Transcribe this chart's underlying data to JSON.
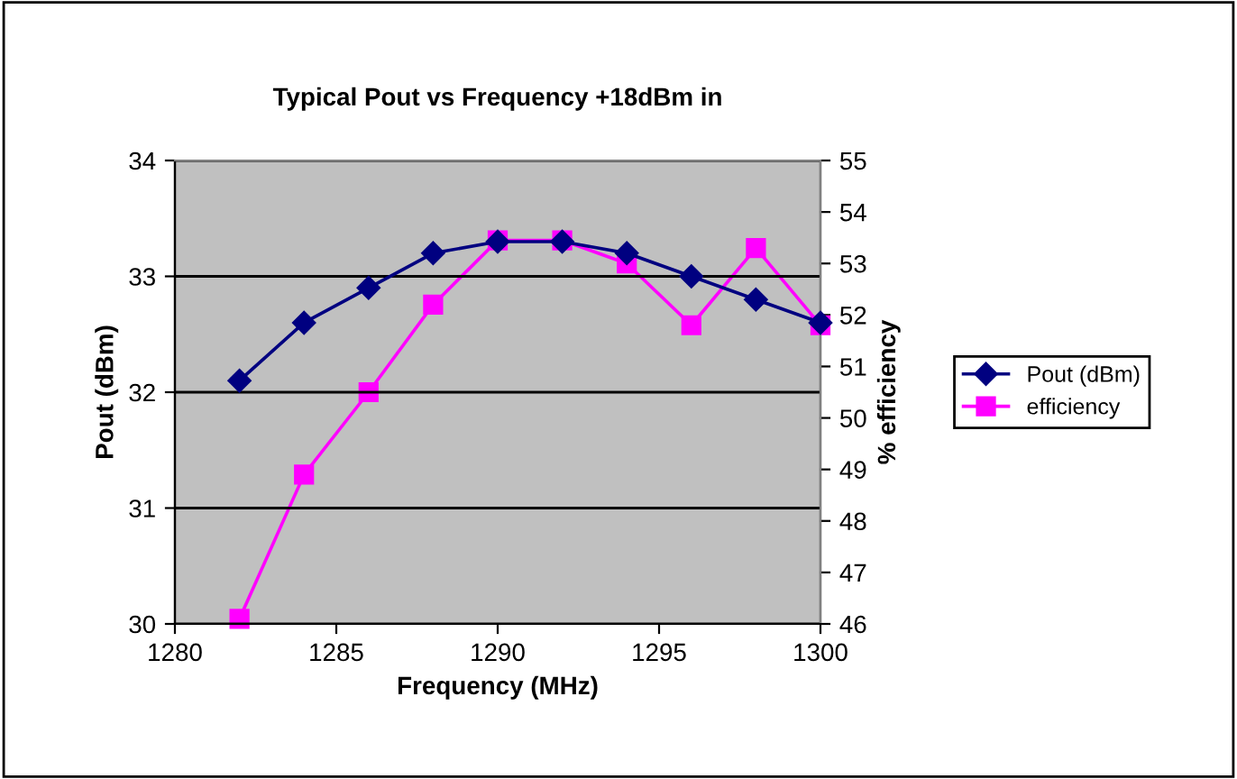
{
  "chart_data": {
    "type": "line",
    "title": "Typical Pout vs Frequency +18dBm in",
    "xlabel": "Frequency (MHz)",
    "ylabel": "Pout (dBm)",
    "y2label": "% efficiency",
    "x": [
      1282,
      1284,
      1286,
      1288,
      1290,
      1292,
      1294,
      1296,
      1298,
      1300
    ],
    "series": [
      {
        "name": "Pout (dBm)",
        "color": "#000080",
        "marker": "diamond",
        "values": [
          32.1,
          32.6,
          32.9,
          33.2,
          33.3,
          33.3,
          33.2,
          33.0,
          32.8,
          32.6
        ]
      },
      {
        "name": "efficiency",
        "color": "#ff00ff",
        "marker": "square",
        "axis": "y2",
        "values": [
          46.1,
          48.9,
          50.5,
          52.2,
          53.45,
          53.45,
          53.0,
          51.8,
          53.3,
          51.8
        ]
      }
    ],
    "xlim": [
      1280,
      1300
    ],
    "xticks": [
      1280,
      1285,
      1290,
      1295,
      1300
    ],
    "ylim": [
      30,
      34
    ],
    "yticks": [
      30,
      31,
      32,
      33,
      34
    ],
    "y2lim": [
      46,
      55
    ],
    "y2ticks": [
      46,
      47,
      48,
      49,
      50,
      51,
      52,
      53,
      54,
      55
    ],
    "grid": "y",
    "legend": "right",
    "line_style": "solid"
  }
}
